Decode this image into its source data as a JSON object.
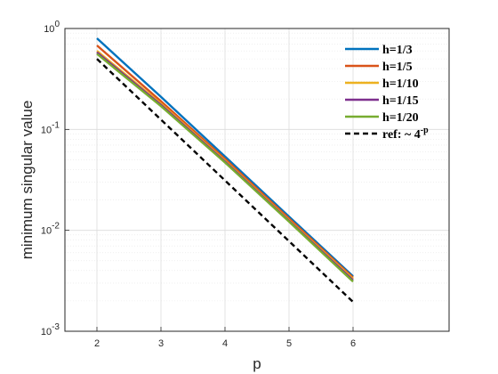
{
  "chart_data": {
    "type": "line",
    "xlabel": "p",
    "ylabel": "minimum singular value",
    "xlim": [
      1.5,
      7.5
    ],
    "ylim": [
      0.001,
      1
    ],
    "yscale": "log",
    "grid": true,
    "minor_grid": true,
    "legend_position": "top-right",
    "x_ticks": [
      "2",
      "3",
      "4",
      "5",
      "6"
    ],
    "y_ticks": [
      {
        "base": "10",
        "exp": "0",
        "value": 1
      },
      {
        "base": "10",
        "exp": "-1",
        "value": 0.1
      },
      {
        "base": "10",
        "exp": "-2",
        "value": 0.01
      },
      {
        "base": "10",
        "exp": "-3",
        "value": 0.001
      }
    ],
    "x": [
      2,
      3,
      4,
      5,
      6
    ],
    "series": [
      {
        "name": "h=1/3",
        "color": "#0072BD",
        "style": "solid",
        "values": [
          0.8,
          0.21,
          0.054,
          0.0137,
          0.0035
        ]
      },
      {
        "name": "h=1/5",
        "color": "#D95319",
        "style": "solid",
        "values": [
          0.68,
          0.19,
          0.051,
          0.0131,
          0.0034
        ]
      },
      {
        "name": "h=1/10",
        "color": "#EDB120",
        "style": "solid",
        "values": [
          0.6,
          0.18,
          0.049,
          0.0126,
          0.0033
        ]
      },
      {
        "name": "h=1/15",
        "color": "#7E2F8E",
        "style": "solid",
        "values": [
          0.58,
          0.175,
          0.048,
          0.0124,
          0.0032
        ]
      },
      {
        "name": "h=1/20",
        "color": "#77AC30",
        "style": "solid",
        "values": [
          0.56,
          0.17,
          0.047,
          0.0122,
          0.0031
        ]
      },
      {
        "name": "ref: ~ 4",
        "name_sup": "-p",
        "color": "#000000",
        "style": "dashed",
        "values": [
          0.5,
          0.125,
          0.03125,
          0.0078125,
          0.001953125
        ]
      }
    ]
  }
}
